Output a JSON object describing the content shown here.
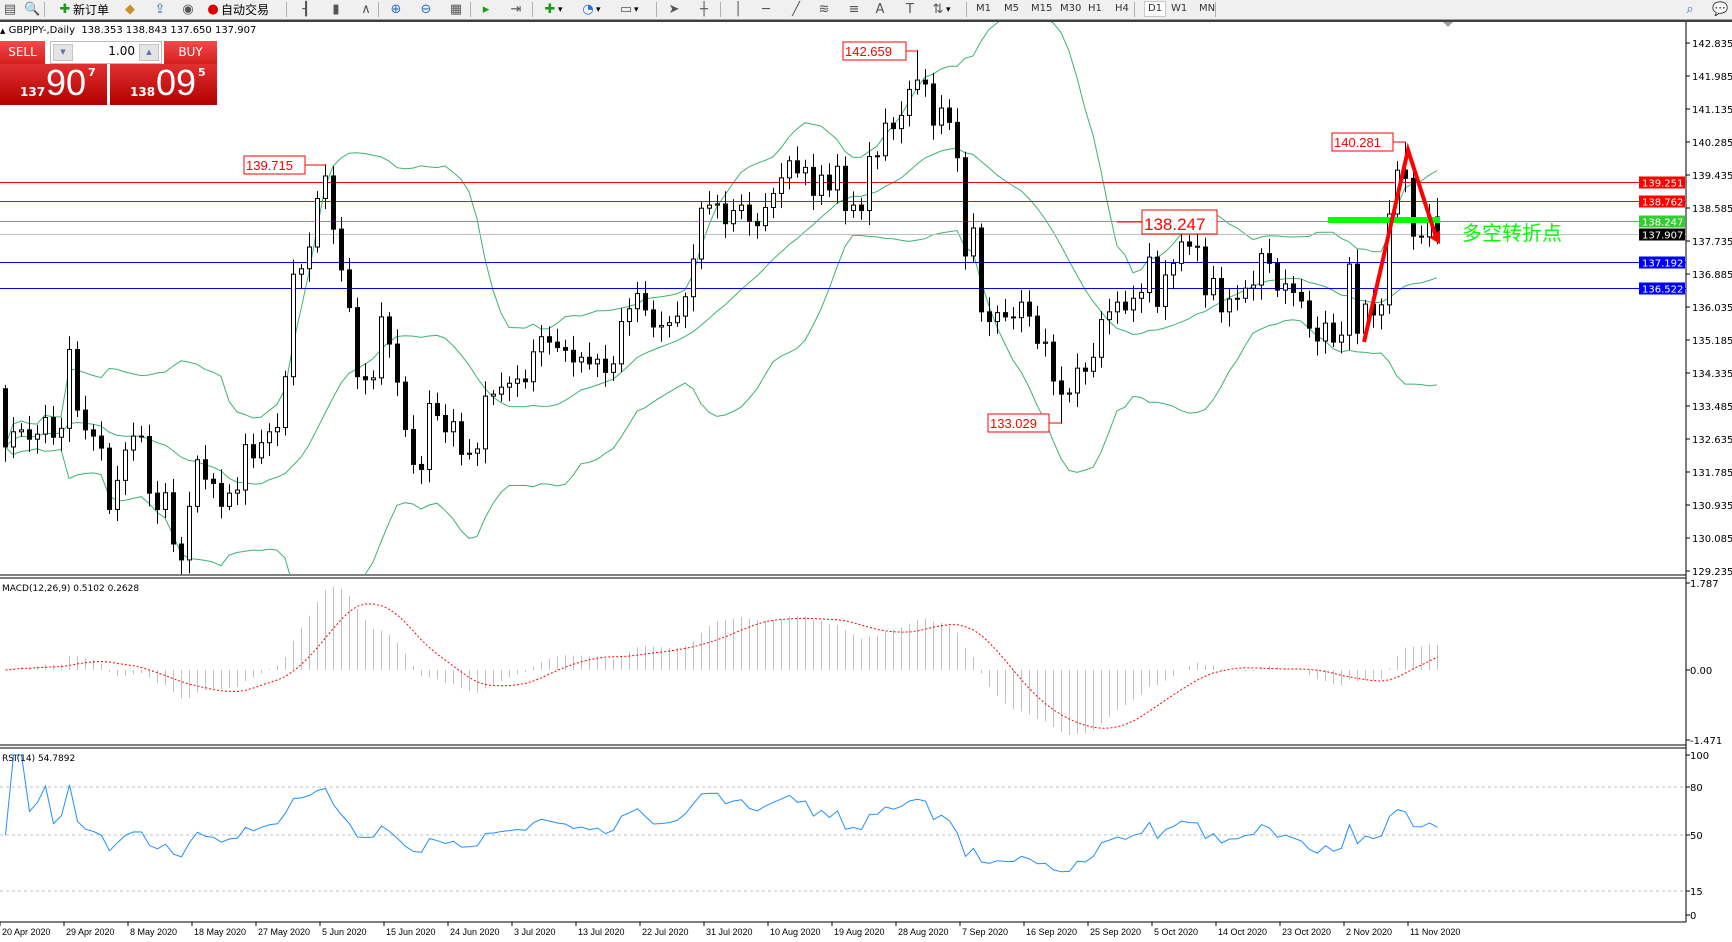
{
  "toolbar": {
    "new_order_label": "新订单",
    "autotrading_label": "自动交易",
    "icons": [
      "new-chart-icon",
      "zoom-magnifier-icon",
      "new-order-icon",
      "book-icon",
      "upload-icon",
      "signal-icon",
      "autotrading-icon",
      "bar-chart-icon",
      "candlestick-icon",
      "line-chart-icon",
      "zoom-in-icon",
      "zoom-out-icon",
      "tile-windows-icon",
      "auto-scroll-icon",
      "chart-shift-icon",
      "indicators-icon",
      "periods-icon",
      "templates-icon",
      "cursor-icon",
      "crosshair-icon",
      "vertical-line-icon",
      "horizontal-line-icon",
      "trendline-icon",
      "fibonacci-fan-icon",
      "fibonacci-icon",
      "text-icon",
      "text-label-icon",
      "arrows-icon"
    ],
    "timeframes": [
      "M1",
      "M5",
      "M15",
      "M30",
      "H1",
      "H4",
      "D1",
      "W1",
      "MN"
    ],
    "selected_timeframe": "D1",
    "text_tool_label": "A",
    "label_tool_label": "T"
  },
  "chart_header": {
    "symbol": "GBPJPY-,Daily",
    "ohlc": "138.353 138.843 137.650 137.907"
  },
  "one_click_trading": {
    "sell_label": "SELL",
    "buy_label": "BUY",
    "lot": "1.00",
    "sell_price": {
      "prefix": "137",
      "big": "90",
      "sup": "7"
    },
    "buy_price": {
      "prefix": "138",
      "big": "09",
      "sup": "5"
    }
  },
  "macd_header": "MACD(12,26,9) 0.5102 0.2628",
  "rsi_header": "RSI(14) 54.7892",
  "annotation_text": "多空转折点",
  "colors": {
    "up_candle": "#ffffff",
    "down_candle": "#000000",
    "bollinger": "#3cb371",
    "macd_hist": "#c0c0c0",
    "macd_signal": "#ff0000",
    "rsi": "#1e90ff",
    "resistance": "#ff0000",
    "support": "#0000ff",
    "pivot": "#00c800",
    "annotation": "#00ff00"
  },
  "chart_data": [
    {
      "type": "candlestick",
      "symbol": "GBPJPY",
      "timeframe": "Daily",
      "ylim": [
        129.235,
        142.835
      ],
      "y_ticks": [
        "142.835",
        "141.985",
        "141.135",
        "140.285",
        "139.435",
        "138.585",
        "137.735",
        "136.885",
        "136.035",
        "135.185",
        "134.335",
        "133.485",
        "132.635",
        "131.785",
        "130.935",
        "130.085",
        "129.235"
      ],
      "x_ticks": [
        "20 Apr 2020",
        "29 Apr 2020",
        "8 May 2020",
        "18 May 2020",
        "27 May 2020",
        "5 Jun 2020",
        "15 Jun 2020",
        "24 Jun 2020",
        "3 Jul 2020",
        "13 Jul 2020",
        "22 Jul 2020",
        "31 Jul 2020",
        "10 Aug 2020",
        "19 Aug 2020",
        "28 Aug 2020",
        "7 Sep 2020",
        "16 Sep 2020",
        "25 Sep 2020",
        "5 Oct 2020",
        "14 Oct 2020",
        "23 Oct 2020",
        "2 Nov 2020",
        "11 Nov 2020"
      ],
      "first_open": 133.93,
      "last_bar": {
        "open": 138.353,
        "high": 138.843,
        "low": 137.65,
        "close": 137.907
      },
      "closes": [
        132.43,
        132.82,
        132.87,
        132.63,
        132.76,
        133.19,
        132.68,
        132.91,
        134.94,
        133.38,
        132.87,
        132.71,
        132.4,
        130.82,
        131.57,
        132.35,
        132.71,
        132.7,
        131.24,
        130.82,
        131.25,
        129.93,
        129.52,
        130.9,
        132.1,
        131.6,
        131.49,
        130.9,
        131.24,
        131.32,
        132.49,
        132.15,
        132.54,
        132.82,
        132.93,
        134.24,
        136.88,
        137.02,
        137.58,
        138.83,
        139.41,
        138.04,
        136.99,
        136.02,
        134.24,
        134.16,
        134.21,
        135.78,
        135.08,
        134.1,
        132.88,
        131.98,
        131.85,
        133.55,
        133.24,
        132.82,
        133.08,
        132.24,
        132.27,
        132.38,
        133.74,
        133.79,
        133.97,
        134.07,
        134.18,
        134.11,
        134.88,
        135.27,
        135.13,
        134.99,
        134.92,
        134.62,
        134.74,
        134.57,
        134.69,
        134.35,
        134.57,
        135.66,
        135.99,
        136.38,
        135.96,
        135.52,
        135.56,
        135.63,
        135.8,
        136.3,
        137.27,
        138.58,
        138.66,
        138.69,
        138.18,
        138.52,
        138.66,
        138.24,
        138.13,
        138.6,
        138.96,
        139.36,
        139.8,
        139.49,
        139.63,
        138.91,
        139.43,
        139.05,
        139.66,
        138.52,
        138.66,
        138.52,
        139.91,
        139.93,
        140.77,
        140.63,
        140.97,
        141.64,
        141.88,
        141.78,
        140.72,
        141.16,
        140.79,
        139.88,
        137.35,
        138.07,
        135.91,
        135.66,
        135.89,
        135.78,
        135.76,
        136.16,
        135.8,
        135.1,
        135.13,
        134.13,
        133.79,
        133.82,
        134.46,
        134.38,
        134.74,
        135.71,
        135.91,
        136.16,
        135.96,
        136.26,
        136.41,
        137.32,
        136.05,
        136.86,
        137.16,
        137.71,
        137.6,
        137.58,
        136.35,
        136.77,
        135.91,
        136.24,
        136.26,
        136.52,
        136.6,
        137.41,
        137.16,
        136.47,
        136.63,
        136.41,
        136.19,
        135.49,
        135.16,
        135.62,
        135.13,
        135.31,
        137.14,
        135.36,
        136.11,
        135.83,
        136.09,
        138.43,
        139.56,
        139.35,
        137.86,
        137.84,
        138.35,
        137.907
      ],
      "price_labels": [
        {
          "text": "139.715",
          "value": 139.715,
          "kind": "high"
        },
        {
          "text": "142.659",
          "value": 142.659,
          "kind": "high"
        },
        {
          "text": "133.029",
          "value": 133.029,
          "kind": "low"
        },
        {
          "text": "138.247",
          "value": 138.247,
          "kind": "level"
        },
        {
          "text": "140.281",
          "value": 140.281,
          "kind": "high"
        }
      ],
      "horizontal_lines": [
        {
          "value": 139.251,
          "text": "139.251",
          "color": "#ff0000"
        },
        {
          "value": 138.762,
          "text": "138.762",
          "color": "#ff0000"
        },
        {
          "value": 138.247,
          "text": "138.247",
          "color": "#33cc33"
        },
        {
          "value": 137.907,
          "text": "137.907",
          "color": "#c0c0c0",
          "tag_color": "#000000"
        },
        {
          "value": 137.192,
          "text": "137.192",
          "color": "#0000ff"
        },
        {
          "value": 136.522,
          "text": "136.522",
          "color": "#0000ff"
        }
      ],
      "indicators": [
        "Bollinger Bands(20,2)"
      ]
    },
    {
      "type": "bar",
      "name": "MACD(12,26,9)",
      "main": 0.5102,
      "signal": 0.2628,
      "ylim": [
        -1.471,
        1.787
      ],
      "y_ticks": [
        "1.787",
        "0.00",
        "-1.471"
      ]
    },
    {
      "type": "line",
      "name": "RSI(14)",
      "value": 54.7892,
      "ylim": [
        0,
        100
      ],
      "y_ticks": [
        "100",
        "80",
        "50",
        "15",
        "0"
      ],
      "levels": [
        80,
        50,
        15
      ]
    }
  ]
}
